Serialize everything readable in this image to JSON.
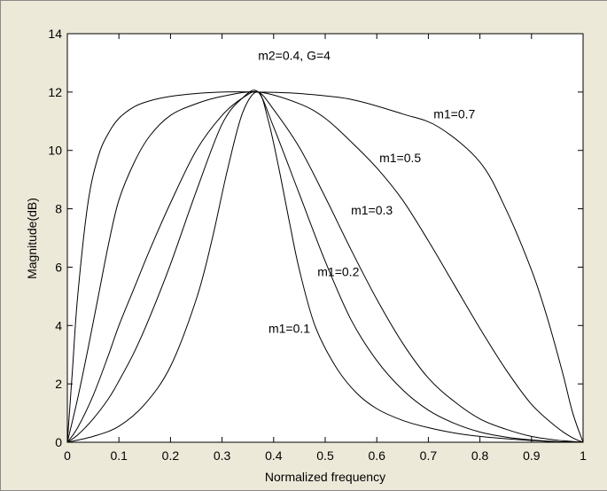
{
  "chart_data": {
    "type": "line",
    "title": "",
    "annotation": "m2=0.4, G=4",
    "xlabel": "Normalized frequency",
    "ylabel": "Magnitude(dB)",
    "xlim": [
      0,
      1
    ],
    "ylim": [
      0,
      14
    ],
    "xticks": [
      0,
      0.1,
      0.2,
      0.3,
      0.4,
      0.5,
      0.6,
      0.7,
      0.8,
      0.9,
      1
    ],
    "xtick_labels": [
      "0",
      "0.1",
      "0.2",
      "0.3",
      "0.4",
      "0.5",
      "0.6",
      "0.7",
      "0.8",
      "0.9",
      "1"
    ],
    "yticks": [
      0,
      2,
      4,
      6,
      8,
      10,
      12,
      14
    ],
    "ytick_labels": [
      "0",
      "2",
      "4",
      "6",
      "8",
      "10",
      "12",
      "14"
    ],
    "grid": false,
    "line_color": "#000000",
    "series": [
      {
        "name": "m1=0.7",
        "x": [
          0,
          0.01,
          0.02,
          0.04,
          0.06,
          0.08,
          0.1,
          0.13,
          0.16,
          0.2,
          0.25,
          0.3,
          0.37,
          0.45,
          0.55,
          0.65,
          0.72,
          0.8,
          0.85,
          0.9,
          0.93,
          0.96,
          0.98,
          1
        ],
        "y": [
          0,
          2.5,
          5.0,
          8.2,
          9.8,
          10.6,
          11.1,
          11.5,
          11.7,
          11.85,
          11.95,
          12.0,
          12.0,
          11.95,
          11.75,
          11.25,
          10.8,
          9.6,
          8.0,
          5.9,
          4.3,
          2.4,
          1.0,
          0
        ]
      },
      {
        "name": "m1=0.5",
        "x": [
          0,
          0.02,
          0.04,
          0.06,
          0.08,
          0.1,
          0.13,
          0.16,
          0.2,
          0.25,
          0.3,
          0.37,
          0.45,
          0.5,
          0.55,
          0.6,
          0.65,
          0.7,
          0.75,
          0.8,
          0.85,
          0.9,
          0.95,
          0.98,
          1
        ],
        "y": [
          0,
          1.5,
          3.2,
          5.0,
          6.8,
          8.3,
          9.6,
          10.5,
          11.2,
          11.6,
          11.85,
          12.0,
          11.6,
          11.1,
          10.3,
          9.4,
          8.3,
          6.9,
          5.4,
          3.9,
          2.5,
          1.3,
          0.5,
          0.15,
          0
        ]
      },
      {
        "name": "m1=0.3",
        "x": [
          0,
          0.02,
          0.05,
          0.08,
          0.1,
          0.13,
          0.16,
          0.2,
          0.25,
          0.3,
          0.34,
          0.37,
          0.4,
          0.45,
          0.5,
          0.55,
          0.6,
          0.65,
          0.7,
          0.75,
          0.8,
          0.85,
          0.9,
          0.95,
          1
        ],
        "y": [
          0,
          0.5,
          1.6,
          3.0,
          4.0,
          5.3,
          6.6,
          8.2,
          10.0,
          11.2,
          11.8,
          12.0,
          11.4,
          10.1,
          8.4,
          6.6,
          4.9,
          3.4,
          2.2,
          1.4,
          0.8,
          0.45,
          0.2,
          0.07,
          0
        ]
      },
      {
        "name": "m1=0.2",
        "x": [
          0,
          0.02,
          0.05,
          0.08,
          0.1,
          0.13,
          0.16,
          0.2,
          0.25,
          0.3,
          0.34,
          0.37,
          0.4,
          0.45,
          0.5,
          0.55,
          0.6,
          0.65,
          0.7,
          0.75,
          0.8,
          0.85,
          0.9,
          0.95,
          1
        ],
        "y": [
          0,
          0.25,
          0.8,
          1.5,
          2.1,
          3.1,
          4.3,
          6.1,
          8.6,
          10.9,
          11.8,
          12.0,
          10.8,
          8.5,
          6.2,
          4.2,
          2.8,
          1.8,
          1.1,
          0.65,
          0.35,
          0.18,
          0.08,
          0.02,
          0
        ]
      },
      {
        "name": "m1=0.1",
        "x": [
          0,
          0.05,
          0.1,
          0.15,
          0.2,
          0.25,
          0.28,
          0.31,
          0.34,
          0.37,
          0.39,
          0.41,
          0.43,
          0.45,
          0.48,
          0.52,
          0.56,
          0.6,
          0.65,
          0.7,
          0.75,
          0.8,
          0.85,
          0.9,
          0.95,
          1
        ],
        "y": [
          0,
          0.2,
          0.55,
          1.3,
          2.6,
          4.9,
          6.9,
          9.3,
          11.3,
          12.0,
          11.0,
          9.4,
          7.6,
          5.9,
          4.0,
          2.6,
          1.7,
          1.15,
          0.75,
          0.5,
          0.32,
          0.2,
          0.12,
          0.06,
          0.02,
          0
        ]
      }
    ],
    "curve_labels": [
      {
        "text": "m1=0.7",
        "x": 0.71,
        "y": 11.1
      },
      {
        "text": "m1=0.5",
        "x": 0.605,
        "y": 9.6
      },
      {
        "text": "m1=0.3",
        "x": 0.55,
        "y": 7.8
      },
      {
        "text": "m1=0.2",
        "x": 0.485,
        "y": 5.7
      },
      {
        "text": "m1=0.1",
        "x": 0.39,
        "y": 3.75
      }
    ],
    "annotation_position": {
      "x": 0.44,
      "y": 13.1
    }
  }
}
